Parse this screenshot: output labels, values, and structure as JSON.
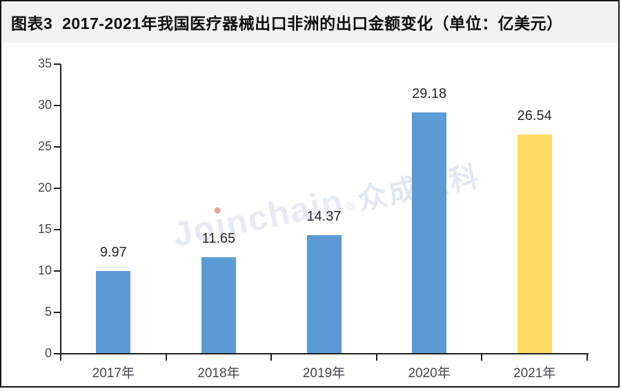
{
  "header": {
    "title": "图表3  2017-2021年我国医疗器械出口非洲的出口金额变化（单位：亿美元）"
  },
  "watermark": {
    "latin_pre": "Jo",
    "latin_i": "ı",
    "latin_post": "nchain",
    "reg": "®",
    "cjk": "众成数科"
  },
  "chart_data": {
    "type": "bar",
    "title": "图表3 2017-2021年我国医疗器械出口非洲的出口金额变化（单位：亿美元）",
    "categories": [
      "2017年",
      "2018年",
      "2019年",
      "2020年",
      "2021年"
    ],
    "values": [
      9.97,
      11.65,
      14.37,
      29.18,
      26.54
    ],
    "data_labels": [
      "9.97",
      "11.65",
      "14.37",
      "29.18",
      "26.54"
    ],
    "bar_colors": [
      "#5B9BD5",
      "#5B9BD5",
      "#5B9BD5",
      "#5B9BD5",
      "#FFD966"
    ],
    "xlabel": "",
    "ylabel": "",
    "ylim": [
      0,
      35
    ],
    "yticks": [
      0,
      5,
      10,
      15,
      20,
      25,
      30,
      35
    ],
    "grid": false,
    "legend": "none"
  },
  "colors": {
    "bar_blue": "#5B9BD5",
    "bar_highlight_yellow": "#FFD966",
    "axis": "#1f1f1f",
    "tick_label": "#44474f",
    "data_label": "#262626",
    "title_band_bg": "#F2F2F2",
    "frame_border": "#161616",
    "watermark_text": "#E6EAF3",
    "watermark_i_dot": "#EBA49B"
  }
}
